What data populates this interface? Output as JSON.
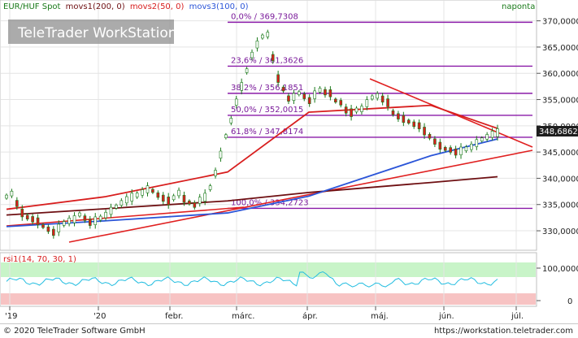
{
  "chart_data": [
    {
      "type": "line",
      "instrument": "EUR/HUF Spot",
      "legend": [
        "EUR/HUF Spot",
        "movs1(200, 0)",
        "movs2(50, 0)",
        "movs3(100, 0)"
      ],
      "period": "naponta",
      "watermark": "TeleTrader WorkStation",
      "last_value": "348,6862",
      "x_ticks": [
        "'19",
        "'20",
        "febr.",
        "márc.",
        "ápr.",
        "máj.",
        "jún.",
        "júl."
      ],
      "y_ticks": [
        {
          "v": 370,
          "label": "370,0000"
        },
        {
          "v": 365,
          "label": "365,0000"
        },
        {
          "v": 360,
          "label": "360,0000"
        },
        {
          "v": 355,
          "label": "355,0000"
        },
        {
          "v": 350,
          "label": "350,0000"
        },
        {
          "v": 345,
          "label": "345,0000"
        },
        {
          "v": 340,
          "label": "340,0000"
        },
        {
          "v": 335,
          "label": "335,0000"
        },
        {
          "v": 330,
          "label": "330,0000"
        }
      ],
      "ylim": [
        326.6,
        371.8
      ],
      "fib_levels": [
        {
          "label": "0,0% / 369,7308",
          "value": 369.7308
        },
        {
          "label": "23,6% / 361,3626",
          "value": 361.3626
        },
        {
          "label": "38,2% / 356,1851",
          "value": 356.1851
        },
        {
          "label": "50,0% / 352,0015",
          "value": 352.0015
        },
        {
          "label": "61,8% / 347,8174",
          "value": 347.8174
        },
        {
          "label": "100,0% / 334,2723",
          "value": 334.2723
        }
      ],
      "series": [
        {
          "name": "EUR/HUF Spot",
          "color": "#1a7a1a",
          "values": [
            336.5,
            337.1,
            335.2,
            333.4,
            332.6,
            332.2,
            331.8,
            330.9,
            330.3,
            329.7,
            330.5,
            331.4,
            331.9,
            332.2,
            333.1,
            332.4,
            331.6,
            331.9,
            332.4,
            333.0,
            333.8,
            334.6,
            335.3,
            335.9,
            336.4,
            336.8,
            337.3,
            337.9,
            337.6,
            336.8,
            336.2,
            335.7,
            336.3,
            337.2,
            336.1,
            335.4,
            334.9,
            335.8,
            336.4,
            338.2,
            341.0,
            344.5,
            348.0,
            351.0,
            354.5,
            357.5,
            360.5,
            363.5,
            365.5,
            367.0,
            367.4,
            363.0,
            359.0,
            357.0,
            355.2,
            355.5,
            356.2,
            355.6,
            354.8,
            355.9,
            356.8,
            356.4,
            356.2,
            354.8,
            354.4,
            353.0,
            352.5,
            353.0,
            353.2,
            354.3,
            355.4,
            355.7,
            355.1,
            354.4,
            352.5,
            351.8,
            351.3,
            350.8,
            350.3,
            350.0,
            349.0,
            348.0,
            347.0,
            346.2,
            345.6,
            345.4,
            345.0,
            345.2,
            345.6,
            346.0,
            346.7,
            347.4,
            347.9,
            348.4,
            348.69
          ]
        },
        {
          "name": "movs1(200, 0)",
          "color": "#6e0f12",
          "values": [
            333.0,
            334.2,
            335.7,
            337.3,
            339.2,
            340.3
          ]
        },
        {
          "name": "movs2(50, 0)",
          "color": "#d81e1e",
          "values": [
            334.1,
            336.5,
            341.2,
            352.6,
            353.9,
            349.5
          ]
        },
        {
          "name": "movs3(100, 0)",
          "color": "#2b55d8",
          "values": [
            330.8,
            331.9,
            333.4,
            336.6,
            344.3,
            347.5
          ]
        }
      ],
      "rsi": {
        "label": "rsi1(14, 70, 30, 1)",
        "levels": {
          "upper": 70,
          "lower": 30
        },
        "y_ticks": [
          "100,0000",
          "0"
        ],
        "color": "#22bde0"
      }
    }
  ],
  "footer": {
    "left": "© 2020 TeleTrader Software GmbH",
    "right": "https://workstation.teletrader.com"
  }
}
